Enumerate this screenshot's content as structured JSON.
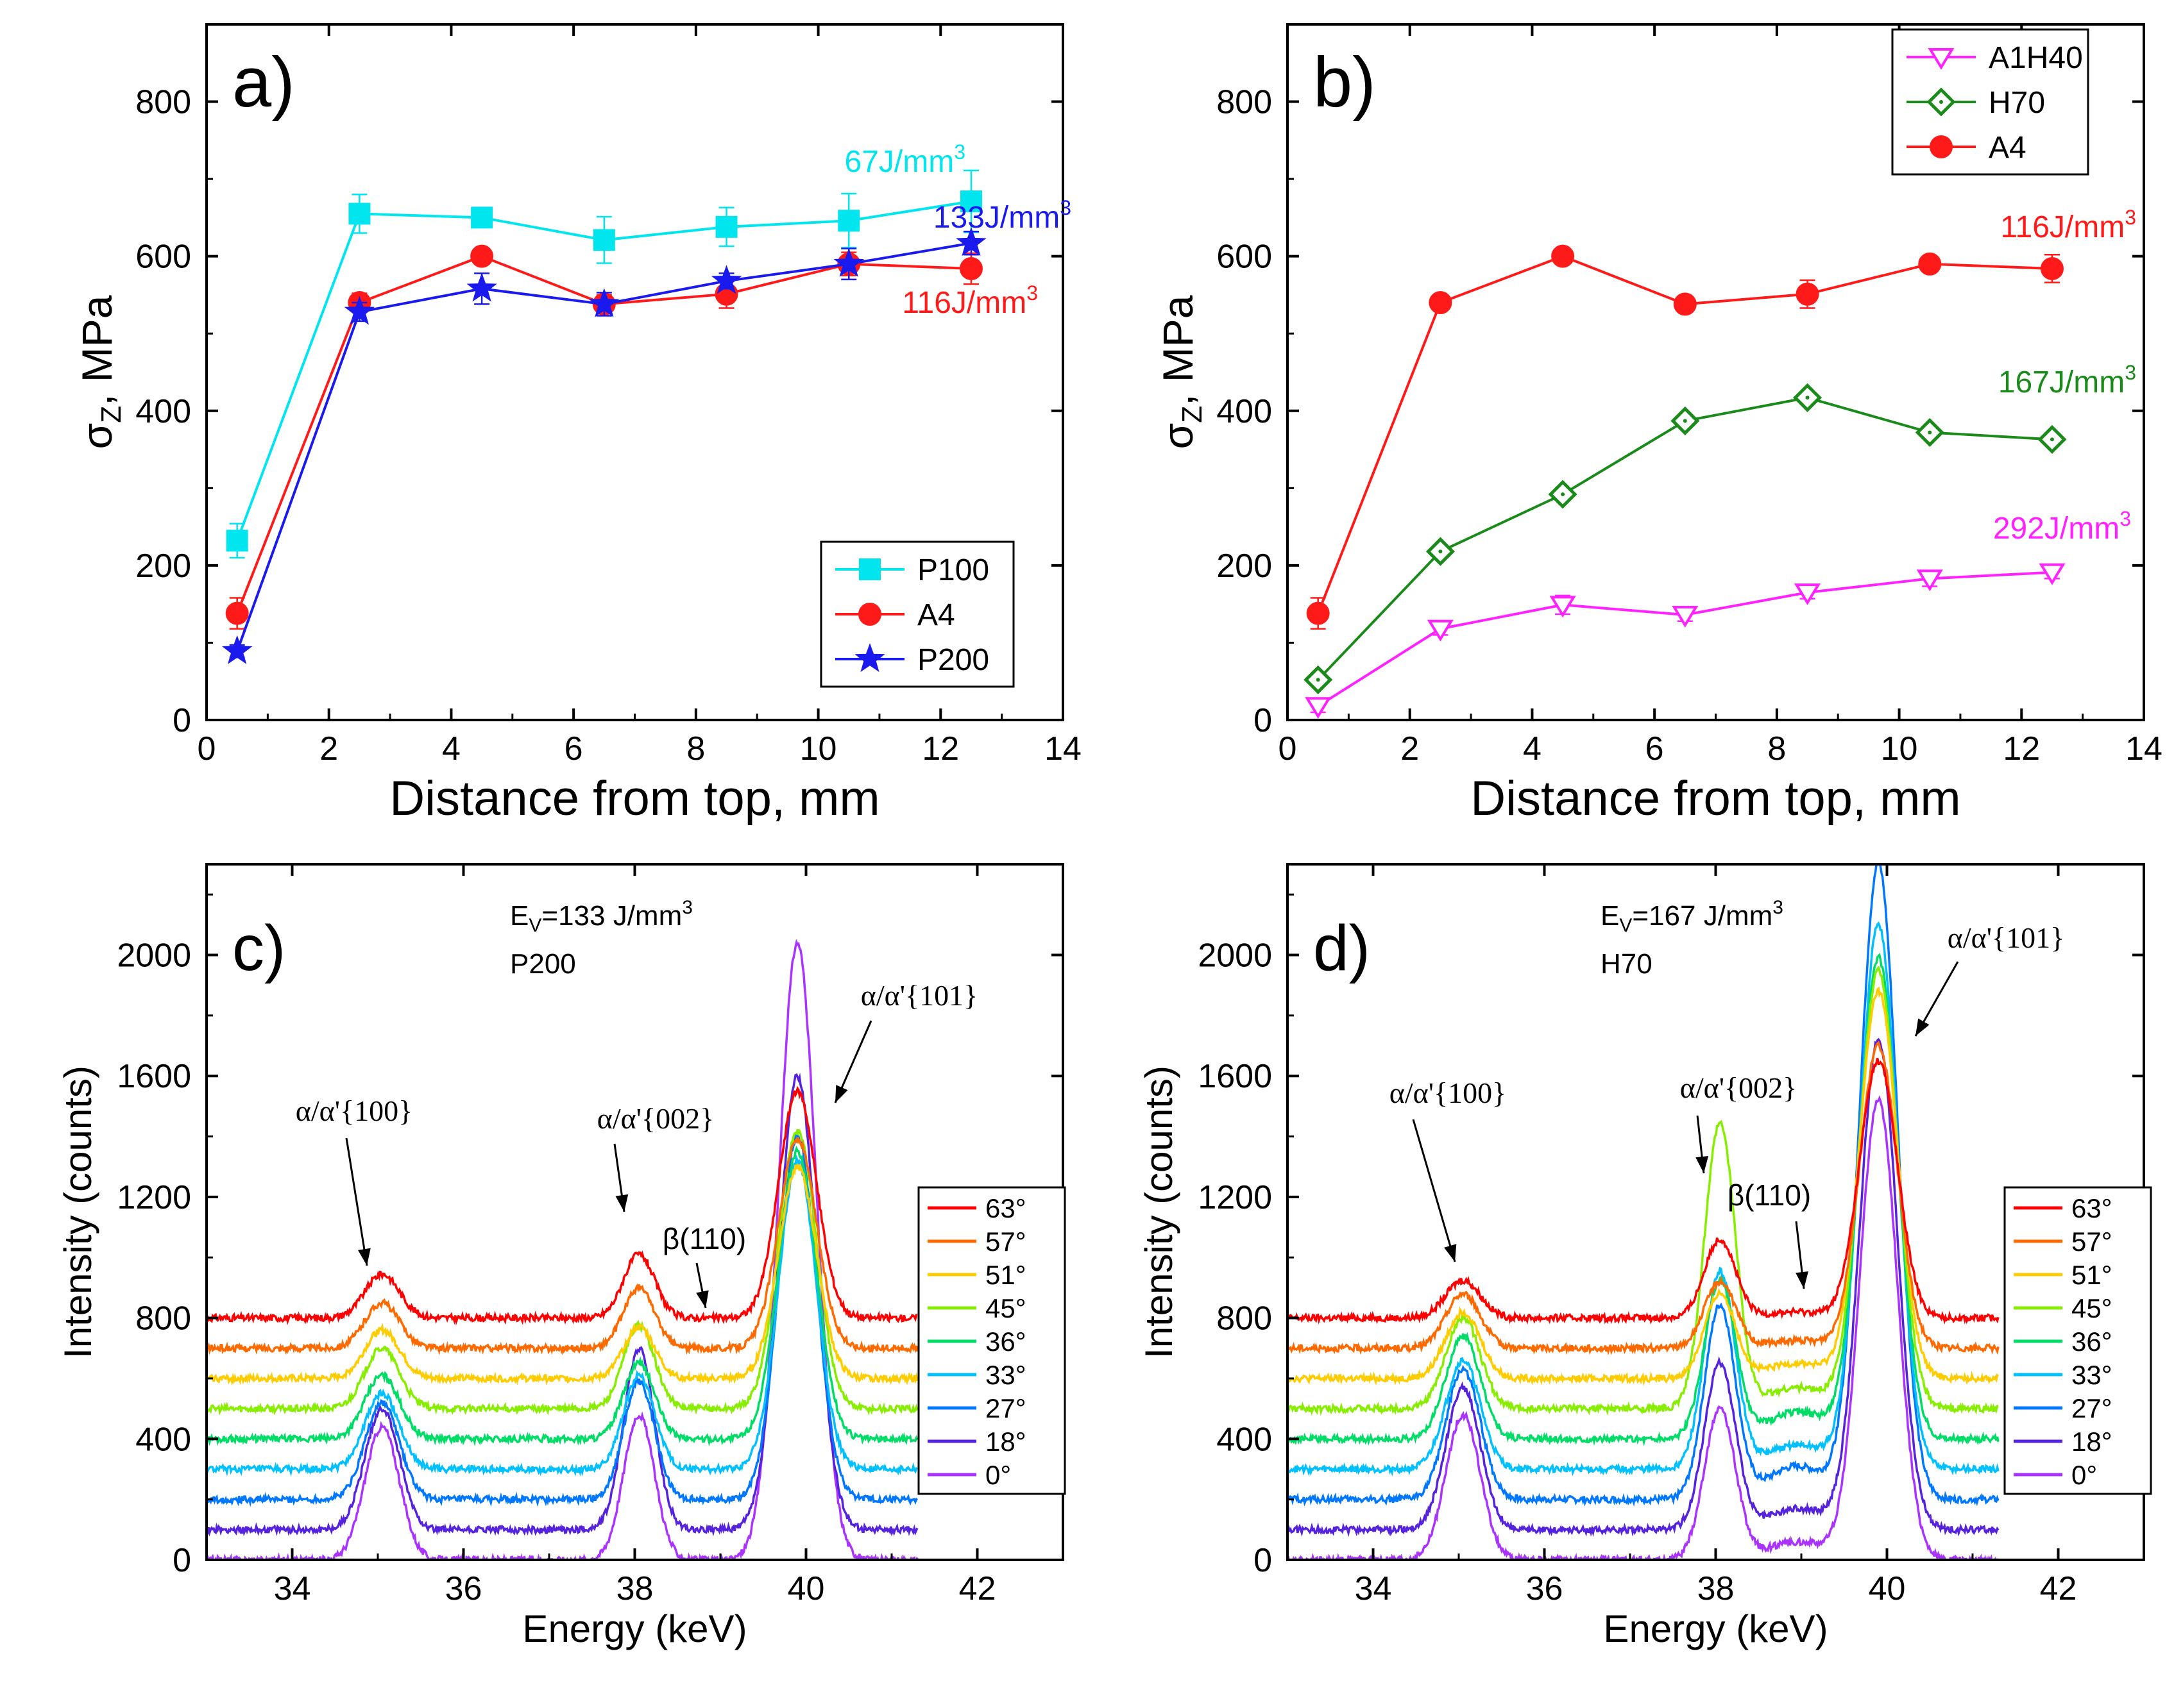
{
  "chart_data": [
    {
      "panel": "a)",
      "type": "line",
      "xlabel": "Distance from top, mm",
      "ylabel_main": "σ",
      "ylabel_sub": "Z",
      "ylabel_rest": ", MPa",
      "xlim": [
        0,
        14
      ],
      "ylim": [
        0,
        900
      ],
      "xticks": [
        0,
        2,
        4,
        6,
        8,
        10,
        12,
        14
      ],
      "yticks": [
        0,
        200,
        400,
        600,
        800
      ],
      "x": [
        0.5,
        2.5,
        4.5,
        6.5,
        8.5,
        10.5,
        12.5
      ],
      "series": [
        {
          "name": "P100",
          "color": "#00e5ee",
          "marker": "square",
          "values": [
            232,
            655,
            650,
            621,
            638,
            646,
            671
          ],
          "errors": [
            22,
            25,
            10,
            30,
            25,
            35,
            40
          ]
        },
        {
          "name": "A4",
          "color": "#ff1a1a",
          "marker": "circle",
          "values": [
            138,
            540,
            600,
            538,
            551,
            590,
            584
          ],
          "errors": [
            20,
            12,
            10,
            12,
            18,
            15,
            20
          ]
        },
        {
          "name": "P200",
          "color": "#1a1aee",
          "marker": "star",
          "values": [
            89,
            528,
            558,
            538,
            568,
            590,
            617
          ],
          "errors": [
            8,
            12,
            20,
            15,
            10,
            20,
            15
          ]
        }
      ],
      "annotations": [
        {
          "text": "67J/mm",
          "sup": "3",
          "color": "#00e5ee"
        },
        {
          "text": "133J/mm",
          "sup": "3",
          "color": "#1a1aee"
        },
        {
          "text": "116J/mm",
          "sup": "3",
          "color": "#ff1a1a"
        }
      ],
      "legend_position": "bottom-right"
    },
    {
      "panel": "b)",
      "type": "line",
      "xlabel": "Distance from top, mm",
      "ylabel_main": "σ",
      "ylabel_sub": "Z",
      "ylabel_rest": ", MPa",
      "xlim": [
        0,
        14
      ],
      "ylim": [
        0,
        900
      ],
      "xticks": [
        0,
        2,
        4,
        6,
        8,
        10,
        12,
        14
      ],
      "yticks": [
        0,
        200,
        400,
        600,
        800
      ],
      "x": [
        0.5,
        2.5,
        4.5,
        6.5,
        8.5,
        10.5,
        12.5
      ],
      "series": [
        {
          "name": "A1H40",
          "color": "#ff22ff",
          "marker": "triangle-down",
          "values": [
            18,
            118,
            149,
            136,
            165,
            183,
            191
          ],
          "errors": [
            8,
            8,
            12,
            8,
            8,
            10,
            8
          ]
        },
        {
          "name": "H70",
          "color": "#1a8a1a",
          "marker": "diamond",
          "values": [
            52,
            218,
            292,
            387,
            417,
            372,
            363
          ],
          "errors": [
            5,
            5,
            5,
            5,
            5,
            5,
            5
          ]
        },
        {
          "name": "A4",
          "color": "#ff1a1a",
          "marker": "circle",
          "values": [
            138,
            540,
            600,
            538,
            551,
            590,
            584
          ],
          "errors": [
            20,
            10,
            8,
            8,
            18,
            8,
            18
          ]
        }
      ],
      "annotations": [
        {
          "text": "116J/mm",
          "sup": "3",
          "color": "#ff1a1a"
        },
        {
          "text": "167J/mm",
          "sup": "3",
          "color": "#1a8a1a"
        },
        {
          "text": "292J/mm",
          "sup": "3",
          "color": "#ff22ff"
        }
      ],
      "legend_position": "top-right"
    },
    {
      "panel": "c)",
      "type": "line",
      "xlabel": "Energy (keV)",
      "ylabel": "Intensity (counts)",
      "xlim": [
        33,
        43
      ],
      "ylim": [
        0,
        2300
      ],
      "xticks": [
        34,
        36,
        38,
        40,
        42
      ],
      "yticks": [
        0,
        400,
        800,
        1200,
        1600,
        2000
      ],
      "header_main": "E",
      "header_sub": "V",
      "header_rest": "=133 J/mm",
      "header_sup": "3",
      "sample": "P200",
      "peak_labels": [
        "α/α'{100}",
        "α/α'{002}",
        "β(110)",
        "α/α'{101}"
      ],
      "angles": [
        "63°",
        "57°",
        "51°",
        "45°",
        "36°",
        "33°",
        "27°",
        "18°",
        "0°"
      ],
      "offsets": [
        800,
        700,
        600,
        500,
        400,
        300,
        200,
        100,
        0
      ],
      "peak_centers": [
        35.05,
        38.05,
        39.9
      ],
      "peak_100": [
        145,
        150,
        160,
        200,
        210,
        250,
        320,
        400,
        440
      ],
      "peak_002": [
        210,
        200,
        170,
        275,
        250,
        310,
        390,
        600,
        480
      ],
      "peak_101": [
        750,
        690,
        700,
        920,
        950,
        1020,
        1200,
        1500,
        2040
      ],
      "beta_110": [
        0,
        0,
        0,
        0,
        0,
        0,
        0,
        0,
        0
      ],
      "colors": [
        "#ff0000",
        "#ff6a00",
        "#ffcc00",
        "#88ee00",
        "#00dd66",
        "#00c0ff",
        "#0077ff",
        "#5522dd",
        "#aa33ff"
      ]
    },
    {
      "panel": "d)",
      "type": "line",
      "xlabel": "Energy (keV)",
      "ylabel": "Intensity (counts)",
      "xlim": [
        33,
        43
      ],
      "ylim": [
        0,
        2300
      ],
      "xticks": [
        34,
        36,
        38,
        40,
        42
      ],
      "yticks": [
        0,
        400,
        800,
        1200,
        1600,
        2000
      ],
      "header_main": "E",
      "header_sub": "V",
      "header_rest": "=167 J/mm",
      "header_sup": "3",
      "sample": "H70",
      "peak_labels": [
        "α/α'{100}",
        "α/α'{002}",
        "β(110)",
        "α/α'{101}"
      ],
      "angles": [
        "63°",
        "57°",
        "51°",
        "45°",
        "36°",
        "33°",
        "27°",
        "18°",
        "0°"
      ],
      "offsets": [
        800,
        700,
        600,
        500,
        400,
        300,
        200,
        100,
        0
      ],
      "peak_centers": [
        35.05,
        38.05,
        39.9
      ],
      "peak_100": [
        125,
        180,
        220,
        300,
        340,
        360,
        430,
        470,
        480
      ],
      "peak_002": [
        260,
        220,
        280,
        940,
        520,
        650,
        640,
        550,
        500
      ],
      "peak_101": [
        850,
        1000,
        1280,
        1450,
        1590,
        1800,
        2100,
        1620,
        1520
      ],
      "beta_110": [
        20,
        25,
        50,
        70,
        90,
        80,
        110,
        70,
        60
      ],
      "colors": [
        "#ff0000",
        "#ff6a00",
        "#ffcc00",
        "#88ee00",
        "#00dd66",
        "#00c0ff",
        "#0077ff",
        "#5522dd",
        "#aa33ff"
      ]
    }
  ]
}
